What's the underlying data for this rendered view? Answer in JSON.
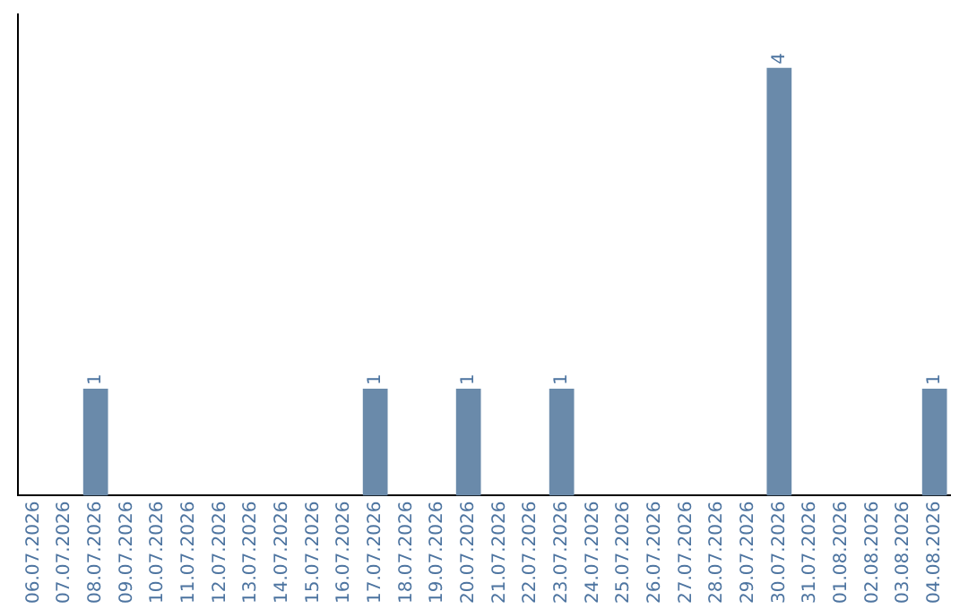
{
  "chart_data": {
    "type": "bar",
    "categories": [
      "06.07.2026",
      "07.07.2026",
      "08.07.2026",
      "09.07.2026",
      "10.07.2026",
      "11.07.2026",
      "12.07.2026",
      "13.07.2026",
      "14.07.2026",
      "15.07.2026",
      "16.07.2026",
      "17.07.2026",
      "18.07.2026",
      "19.07.2026",
      "20.07.2026",
      "21.07.2026",
      "22.07.2026",
      "23.07.2026",
      "24.07.2026",
      "25.07.2026",
      "26.07.2026",
      "27.07.2026",
      "28.07.2026",
      "29.07.2026",
      "30.07.2026",
      "31.07.2026",
      "01.08.2026",
      "02.08.2026",
      "03.08.2026",
      "04.08.2026"
    ],
    "values": [
      0,
      0,
      1,
      0,
      0,
      0,
      0,
      0,
      0,
      0,
      0,
      1,
      0,
      0,
      1,
      0,
      0,
      1,
      0,
      0,
      0,
      0,
      0,
      0,
      4,
      0,
      0,
      0,
      0,
      1
    ],
    "value_labels": [
      null,
      null,
      "1",
      null,
      null,
      null,
      null,
      null,
      null,
      null,
      null,
      "1",
      null,
      null,
      "1",
      null,
      null,
      "1",
      null,
      null,
      null,
      null,
      null,
      null,
      "4",
      null,
      null,
      null,
      null,
      "1"
    ],
    "color": "#6a8aaa",
    "grid": false,
    "legend": false
  }
}
